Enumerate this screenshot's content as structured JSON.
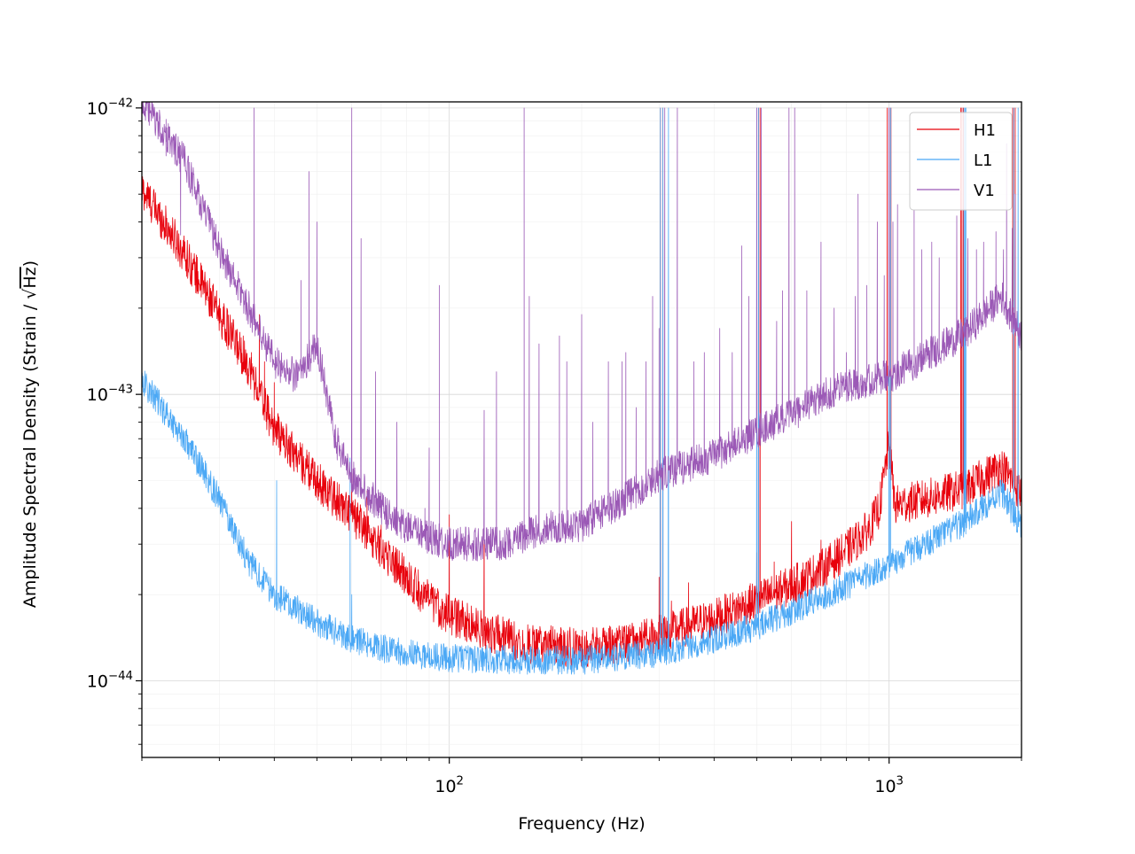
{
  "chart_data": {
    "type": "line",
    "xlabel": "Frequency (Hz)",
    "ylabel_prefix": "Amplitude Spectral Density (Strain / ",
    "ylabel_root": "Hz",
    "ylabel_suffix": ")",
    "x_scale": "log",
    "y_scale": "log",
    "xlim": [
      20,
      2000
    ],
    "ylim": [
      5.4e-45,
      1.05e-42
    ],
    "grid": true,
    "legend_position": "top-right",
    "x_ticks": [
      {
        "value": 100,
        "base": "10",
        "exp": "2"
      },
      {
        "value": 1000,
        "base": "10",
        "exp": "3"
      }
    ],
    "y_ticks": [
      {
        "value": 1e-44,
        "base": "10",
        "exp": "−44"
      },
      {
        "value": 1e-43,
        "base": "10",
        "exp": "−43"
      },
      {
        "value": 1e-42,
        "base": "10",
        "exp": "−42"
      }
    ],
    "series": [
      {
        "name": "H1",
        "color": "#e8000b",
        "width": 0.8,
        "noise": 0.07,
        "base": [
          [
            20,
            5.2e-43
          ],
          [
            25,
            3.1e-43
          ],
          [
            30,
            1.9e-43
          ],
          [
            35,
            1.25e-43
          ],
          [
            40,
            7.6e-44
          ],
          [
            50,
            5e-44
          ],
          [
            60,
            3.8e-44
          ],
          [
            70,
            2.9e-44
          ],
          [
            80,
            2.3e-44
          ],
          [
            90,
            1.9e-44
          ],
          [
            100,
            1.7e-44
          ],
          [
            120,
            1.5e-44
          ],
          [
            150,
            1.35e-44
          ],
          [
            200,
            1.3e-44
          ],
          [
            250,
            1.35e-44
          ],
          [
            300,
            1.45e-44
          ],
          [
            400,
            1.65e-44
          ],
          [
            500,
            1.9e-44
          ],
          [
            600,
            2.15e-44
          ],
          [
            700,
            2.45e-44
          ],
          [
            800,
            2.85e-44
          ],
          [
            900,
            3.4e-44
          ],
          [
            950,
            4e-44
          ],
          [
            1000,
            6.8e-44
          ],
          [
            1030,
            4.1e-44
          ],
          [
            1200,
            4.3e-44
          ],
          [
            1500,
            4.7e-44
          ],
          [
            1800,
            5.6e-44
          ],
          [
            2000,
            4.5e-44
          ]
        ],
        "peaks": [
          [
            34,
            1.6e-43
          ],
          [
            35.5,
            1.4e-43
          ],
          [
            37,
            1.9e-43
          ],
          [
            38,
            1.3e-43
          ],
          [
            40,
            1.1e-43
          ],
          [
            57,
            4.5e-44
          ],
          [
            60,
            5.3e-44
          ],
          [
            62,
            4e-44
          ],
          [
            65,
            4.6e-44
          ],
          [
            70,
            3.5e-44
          ],
          [
            100,
            3.8e-44
          ],
          [
            120,
            3.6e-44
          ],
          [
            300,
            2.3e-44
          ],
          [
            302,
            1e-42
          ],
          [
            306,
            1e-42
          ],
          [
            320,
            1.9e-44
          ],
          [
            350,
            2.2e-44
          ],
          [
            500,
            2.8e-44
          ],
          [
            505,
            1e-42
          ],
          [
            509,
            1e-42
          ],
          [
            548,
            2.6e-44
          ],
          [
            600,
            3.6e-44
          ],
          [
            700,
            3.1e-44
          ],
          [
            990,
            1e-42
          ],
          [
            1000,
            1e-42
          ],
          [
            1010,
            1e-42
          ],
          [
            1455,
            1e-42
          ],
          [
            1465,
            1e-42
          ],
          [
            1475,
            1e-42
          ],
          [
            1910,
            1e-42
          ],
          [
            1935,
            1e-42
          ]
        ]
      },
      {
        "name": "L1",
        "color": "#4ba8f5",
        "width": 0.8,
        "noise": 0.05,
        "base": [
          [
            20,
            1.12e-43
          ],
          [
            25,
            7e-44
          ],
          [
            30,
            4.3e-44
          ],
          [
            35,
            2.6e-44
          ],
          [
            40,
            2e-44
          ],
          [
            50,
            1.6e-44
          ],
          [
            60,
            1.4e-44
          ],
          [
            70,
            1.3e-44
          ],
          [
            80,
            1.25e-44
          ],
          [
            100,
            1.2e-44
          ],
          [
            150,
            1.18e-44
          ],
          [
            200,
            1.18e-44
          ],
          [
            300,
            1.25e-44
          ],
          [
            400,
            1.4e-44
          ],
          [
            500,
            1.55e-44
          ],
          [
            600,
            1.75e-44
          ],
          [
            800,
            2.15e-44
          ],
          [
            1000,
            2.55e-44
          ],
          [
            1200,
            3e-44
          ],
          [
            1500,
            3.6e-44
          ],
          [
            1800,
            4.6e-44
          ],
          [
            2000,
            3.4e-44
          ]
        ],
        "peaks": [
          [
            40.5,
            5e-44
          ],
          [
            59.5,
            6e-44
          ],
          [
            60,
            2e-44
          ],
          [
            302,
            1e-42
          ],
          [
            306,
            1e-42
          ],
          [
            315,
            1e-42
          ],
          [
            500,
            1e-42
          ],
          [
            505,
            1e-42
          ],
          [
            1000,
            1e-42
          ],
          [
            1008,
            1e-42
          ],
          [
            1480,
            1e-42
          ],
          [
            1488,
            1e-42
          ],
          [
            1495,
            1e-42
          ],
          [
            1920,
            1e-42
          ],
          [
            1965,
            1e-42
          ]
        ]
      },
      {
        "name": "V1",
        "color": "#9b59b6",
        "width": 0.8,
        "noise": 0.06,
        "base": [
          [
            20,
            1.05e-42
          ],
          [
            25,
            6.5e-43
          ],
          [
            30,
            3.2e-43
          ],
          [
            35,
            2e-43
          ],
          [
            40,
            1.3e-43
          ],
          [
            45,
            1.15e-43
          ],
          [
            50,
            1.5e-43
          ],
          [
            55,
            7e-44
          ],
          [
            60,
            5.2e-44
          ],
          [
            70,
            4e-44
          ],
          [
            80,
            3.4e-44
          ],
          [
            100,
            3e-44
          ],
          [
            130,
            3e-44
          ],
          [
            150,
            3.2e-44
          ],
          [
            160,
            3.4e-44
          ],
          [
            200,
            3.5e-44
          ],
          [
            250,
            4.3e-44
          ],
          [
            300,
            5.2e-44
          ],
          [
            400,
            6.1e-44
          ],
          [
            500,
            7.4e-44
          ],
          [
            600,
            8.5e-44
          ],
          [
            700,
            9.8e-44
          ],
          [
            800,
            1.08e-43
          ],
          [
            1000,
            1.15e-43
          ],
          [
            1200,
            1.35e-43
          ],
          [
            1500,
            1.65e-43
          ],
          [
            1800,
            2.2e-43
          ],
          [
            2000,
            1.6e-43
          ]
        ],
        "peaks": [
          [
            22.7,
            6.8e-43
          ],
          [
            24.5,
            3.6e-43
          ],
          [
            36,
            1e-42
          ],
          [
            46,
            2.5e-43
          ],
          [
            48,
            6e-43
          ],
          [
            50,
            4e-43
          ],
          [
            60,
            1e-42
          ],
          [
            63,
            3.5e-43
          ],
          [
            68,
            1.2e-43
          ],
          [
            76,
            8e-44
          ],
          [
            88,
            4e-44
          ],
          [
            90,
            6.5e-44
          ],
          [
            95,
            2.4e-43
          ],
          [
            120,
            8.8e-44
          ],
          [
            128,
            1.2e-43
          ],
          [
            148,
            1e-42
          ],
          [
            152,
            2.2e-43
          ],
          [
            160,
            1.5e-43
          ],
          [
            178,
            1.6e-43
          ],
          [
            185,
            1.3e-43
          ],
          [
            200,
            1.9e-43
          ],
          [
            212,
            8e-44
          ],
          [
            230,
            1.3e-43
          ],
          [
            247,
            1.3e-43
          ],
          [
            252,
            1.4e-43
          ],
          [
            266,
            9e-44
          ],
          [
            280,
            1.3e-43
          ],
          [
            290,
            2.2e-43
          ],
          [
            300,
            1.7e-43
          ],
          [
            309,
            1e-42
          ],
          [
            330,
            1e-42
          ],
          [
            360,
            1.3e-43
          ],
          [
            380,
            1.4e-43
          ],
          [
            412,
            1.7e-43
          ],
          [
            440,
            1.4e-43
          ],
          [
            462,
            3.3e-43
          ],
          [
            480,
            2.2e-43
          ],
          [
            500,
            1e-42
          ],
          [
            512,
            1e-42
          ],
          [
            555,
            1.8e-43
          ],
          [
            572,
            2.3e-43
          ],
          [
            592,
            1e-42
          ],
          [
            610,
            1e-42
          ],
          [
            650,
            2.3e-43
          ],
          [
            700,
            3.4e-43
          ],
          [
            750,
            2e-43
          ],
          [
            800,
            1.4e-43
          ],
          [
            838,
            2.2e-43
          ],
          [
            850,
            5e-43
          ],
          [
            890,
            2.4e-43
          ],
          [
            940,
            4e-43
          ],
          [
            975,
            2.6e-43
          ],
          [
            1000,
            1e-42
          ],
          [
            1020,
            4e-43
          ],
          [
            1045,
            4.6e-43
          ],
          [
            1140,
            4.4e-43
          ],
          [
            1187,
            3.2e-43
          ],
          [
            1250,
            3.4e-43
          ],
          [
            1300,
            3e-43
          ],
          [
            1425,
            4.2e-43
          ],
          [
            1510,
            3.5e-43
          ],
          [
            1580,
            3.2e-43
          ],
          [
            1640,
            3.4e-43
          ],
          [
            1750,
            3.7e-43
          ],
          [
            1820,
            3.2e-43
          ],
          [
            1850,
            7.5e-43
          ],
          [
            1905,
            3.8e-43
          ],
          [
            1935,
            5e-43
          ]
        ]
      }
    ]
  }
}
